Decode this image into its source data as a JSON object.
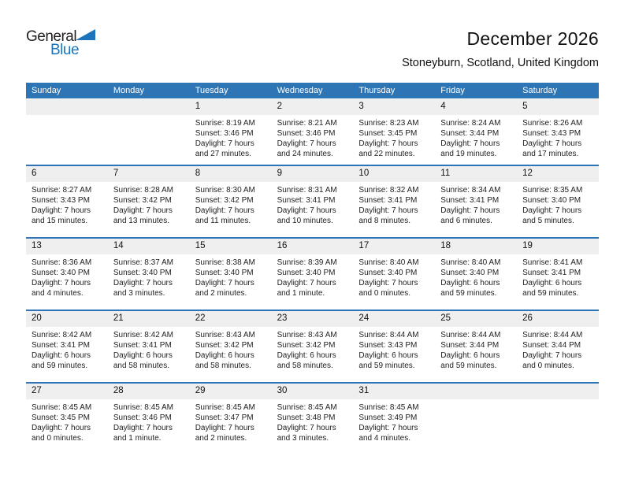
{
  "logo": {
    "text_general": "General",
    "text_blue": "Blue"
  },
  "header": {
    "title": "December 2026",
    "subtitle": "Stoneyburn, Scotland, United Kingdom"
  },
  "colors": {
    "header_bg": "#2E75B5",
    "week_divider": "#2E75B5",
    "day_band_bg": "#EFEFEF",
    "logo_blue": "#1C75BC"
  },
  "calendar": {
    "weekdays": [
      "Sunday",
      "Monday",
      "Tuesday",
      "Wednesday",
      "Thursday",
      "Friday",
      "Saturday"
    ],
    "weeks": [
      [
        null,
        null,
        {
          "day": "1",
          "sunrise": "Sunrise: 8:19 AM",
          "sunset": "Sunset: 3:46 PM",
          "daylight": "Daylight: 7 hours and 27 minutes."
        },
        {
          "day": "2",
          "sunrise": "Sunrise: 8:21 AM",
          "sunset": "Sunset: 3:46 PM",
          "daylight": "Daylight: 7 hours and 24 minutes."
        },
        {
          "day": "3",
          "sunrise": "Sunrise: 8:23 AM",
          "sunset": "Sunset: 3:45 PM",
          "daylight": "Daylight: 7 hours and 22 minutes."
        },
        {
          "day": "4",
          "sunrise": "Sunrise: 8:24 AM",
          "sunset": "Sunset: 3:44 PM",
          "daylight": "Daylight: 7 hours and 19 minutes."
        },
        {
          "day": "5",
          "sunrise": "Sunrise: 8:26 AM",
          "sunset": "Sunset: 3:43 PM",
          "daylight": "Daylight: 7 hours and 17 minutes."
        }
      ],
      [
        {
          "day": "6",
          "sunrise": "Sunrise: 8:27 AM",
          "sunset": "Sunset: 3:43 PM",
          "daylight": "Daylight: 7 hours and 15 minutes."
        },
        {
          "day": "7",
          "sunrise": "Sunrise: 8:28 AM",
          "sunset": "Sunset: 3:42 PM",
          "daylight": "Daylight: 7 hours and 13 minutes."
        },
        {
          "day": "8",
          "sunrise": "Sunrise: 8:30 AM",
          "sunset": "Sunset: 3:42 PM",
          "daylight": "Daylight: 7 hours and 11 minutes."
        },
        {
          "day": "9",
          "sunrise": "Sunrise: 8:31 AM",
          "sunset": "Sunset: 3:41 PM",
          "daylight": "Daylight: 7 hours and 10 minutes."
        },
        {
          "day": "10",
          "sunrise": "Sunrise: 8:32 AM",
          "sunset": "Sunset: 3:41 PM",
          "daylight": "Daylight: 7 hours and 8 minutes."
        },
        {
          "day": "11",
          "sunrise": "Sunrise: 8:34 AM",
          "sunset": "Sunset: 3:41 PM",
          "daylight": "Daylight: 7 hours and 6 minutes."
        },
        {
          "day": "12",
          "sunrise": "Sunrise: 8:35 AM",
          "sunset": "Sunset: 3:40 PM",
          "daylight": "Daylight: 7 hours and 5 minutes."
        }
      ],
      [
        {
          "day": "13",
          "sunrise": "Sunrise: 8:36 AM",
          "sunset": "Sunset: 3:40 PM",
          "daylight": "Daylight: 7 hours and 4 minutes."
        },
        {
          "day": "14",
          "sunrise": "Sunrise: 8:37 AM",
          "sunset": "Sunset: 3:40 PM",
          "daylight": "Daylight: 7 hours and 3 minutes."
        },
        {
          "day": "15",
          "sunrise": "Sunrise: 8:38 AM",
          "sunset": "Sunset: 3:40 PM",
          "daylight": "Daylight: 7 hours and 2 minutes."
        },
        {
          "day": "16",
          "sunrise": "Sunrise: 8:39 AM",
          "sunset": "Sunset: 3:40 PM",
          "daylight": "Daylight: 7 hours and 1 minute."
        },
        {
          "day": "17",
          "sunrise": "Sunrise: 8:40 AM",
          "sunset": "Sunset: 3:40 PM",
          "daylight": "Daylight: 7 hours and 0 minutes."
        },
        {
          "day": "18",
          "sunrise": "Sunrise: 8:40 AM",
          "sunset": "Sunset: 3:40 PM",
          "daylight": "Daylight: 6 hours and 59 minutes."
        },
        {
          "day": "19",
          "sunrise": "Sunrise: 8:41 AM",
          "sunset": "Sunset: 3:41 PM",
          "daylight": "Daylight: 6 hours and 59 minutes."
        }
      ],
      [
        {
          "day": "20",
          "sunrise": "Sunrise: 8:42 AM",
          "sunset": "Sunset: 3:41 PM",
          "daylight": "Daylight: 6 hours and 59 minutes."
        },
        {
          "day": "21",
          "sunrise": "Sunrise: 8:42 AM",
          "sunset": "Sunset: 3:41 PM",
          "daylight": "Daylight: 6 hours and 58 minutes."
        },
        {
          "day": "22",
          "sunrise": "Sunrise: 8:43 AM",
          "sunset": "Sunset: 3:42 PM",
          "daylight": "Daylight: 6 hours and 58 minutes."
        },
        {
          "day": "23",
          "sunrise": "Sunrise: 8:43 AM",
          "sunset": "Sunset: 3:42 PM",
          "daylight": "Daylight: 6 hours and 58 minutes."
        },
        {
          "day": "24",
          "sunrise": "Sunrise: 8:44 AM",
          "sunset": "Sunset: 3:43 PM",
          "daylight": "Daylight: 6 hours and 59 minutes."
        },
        {
          "day": "25",
          "sunrise": "Sunrise: 8:44 AM",
          "sunset": "Sunset: 3:44 PM",
          "daylight": "Daylight: 6 hours and 59 minutes."
        },
        {
          "day": "26",
          "sunrise": "Sunrise: 8:44 AM",
          "sunset": "Sunset: 3:44 PM",
          "daylight": "Daylight: 7 hours and 0 minutes."
        }
      ],
      [
        {
          "day": "27",
          "sunrise": "Sunrise: 8:45 AM",
          "sunset": "Sunset: 3:45 PM",
          "daylight": "Daylight: 7 hours and 0 minutes."
        },
        {
          "day": "28",
          "sunrise": "Sunrise: 8:45 AM",
          "sunset": "Sunset: 3:46 PM",
          "daylight": "Daylight: 7 hours and 1 minute."
        },
        {
          "day": "29",
          "sunrise": "Sunrise: 8:45 AM",
          "sunset": "Sunset: 3:47 PM",
          "daylight": "Daylight: 7 hours and 2 minutes."
        },
        {
          "day": "30",
          "sunrise": "Sunrise: 8:45 AM",
          "sunset": "Sunset: 3:48 PM",
          "daylight": "Daylight: 7 hours and 3 minutes."
        },
        {
          "day": "31",
          "sunrise": "Sunrise: 8:45 AM",
          "sunset": "Sunset: 3:49 PM",
          "daylight": "Daylight: 7 hours and 4 minutes."
        },
        null,
        null
      ]
    ]
  }
}
